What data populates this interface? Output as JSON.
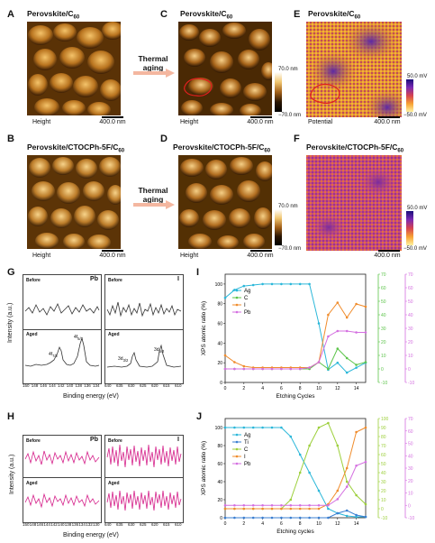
{
  "panels": {
    "A": {
      "letter": "A",
      "title_main": "Perovskite/C",
      "title_sub": "60",
      "caption": "Height",
      "scale": "400.0 nm"
    },
    "B": {
      "letter": "B",
      "title_main": "Perovskite/CTOCPh-5F/C",
      "title_sub": "60",
      "caption": "Height",
      "scale": "400.0 nm"
    },
    "C": {
      "letter": "C",
      "title_main": "Perovskite/C",
      "title_sub": "60",
      "caption": "Height",
      "scale": "400.0 nm",
      "cb_max": "70.0 nm",
      "cb_min": "−70.0 nm"
    },
    "D": {
      "letter": "D",
      "title_main": "Perovskite/CTOCPh-5F/C",
      "title_sub": "60",
      "caption": "Height",
      "scale": "400.0 nm",
      "cb_max": "70.0 nm",
      "cb_min": "−70.0 nm"
    },
    "E": {
      "letter": "E",
      "title_main": "Perovskite/C",
      "title_sub": "60",
      "caption": "Potential",
      "scale": "400.0 nm",
      "cb_max": "50.0 mV",
      "cb_min": "−50.0 mV"
    },
    "F": {
      "letter": "F",
      "title_main": "Perovskite/CTOCPh-5F/C",
      "title_sub": "60",
      "caption": "",
      "scale": "400.0 nm",
      "cb_max": "50.0 mV",
      "cb_min": "−50.0 mV"
    }
  },
  "arrows": [
    {
      "line1": "Thermal",
      "line2": "aging"
    },
    {
      "line1": "Thermal",
      "line2": "aging"
    }
  ],
  "xps_G": {
    "letter": "G",
    "left_title": "Pb",
    "right_title": "I",
    "before": "Before",
    "aged": "Aged",
    "pb_peaks": [
      "4f",
      "7/2",
      "4f",
      "5/2"
    ],
    "i_peaks": [
      "3d",
      "3/2",
      "3d",
      "5/2"
    ],
    "pb_ticks": [
      "150",
      "148",
      "146",
      "144",
      "142",
      "140",
      "138",
      "136",
      "134"
    ],
    "i_ticks": [
      "640",
      "635",
      "630",
      "625",
      "620",
      "615",
      "610"
    ],
    "ylabel": "Intensity (a.u.)",
    "xlabel": "Binding energy (eV)"
  },
  "xps_H": {
    "letter": "H",
    "left_title": "Pb",
    "right_title": "I",
    "before": "Before",
    "aged": "Aged",
    "pb_ticks": [
      "150",
      "148",
      "146",
      "144",
      "142",
      "140",
      "138",
      "136",
      "134",
      "132",
      "130"
    ],
    "i_ticks": [
      "640",
      "635",
      "630",
      "625",
      "620",
      "615",
      "610"
    ],
    "ylabel": "Intensity (a.u.)",
    "xlabel": "Binding energy (eV)"
  },
  "chart_data": [
    {
      "id": "I",
      "type": "line",
      "xlabel": "Etching Cycles",
      "ylabel": "XPS atomic ratio (%)",
      "xlim": [
        0,
        15
      ],
      "ylim": [
        0,
        110
      ],
      "y2lim": [
        -10,
        70
      ],
      "y3lim": [
        -10,
        70
      ],
      "x_ticks": [
        0,
        2,
        4,
        6,
        8,
        10,
        12,
        14
      ],
      "y_ticks": [
        0,
        20,
        40,
        60,
        80,
        100
      ],
      "y2_ticks": [
        -10,
        0,
        10,
        20,
        30,
        40,
        50,
        60,
        70
      ],
      "y3_ticks": [
        -10,
        0,
        10,
        20,
        30,
        40,
        50,
        60,
        70
      ],
      "legend_position": "left",
      "series": [
        {
          "name": "Ag",
          "axis": "left",
          "color": "#2bb7d9",
          "x": [
            0,
            1,
            2,
            3,
            4,
            5,
            6,
            7,
            8,
            9,
            10,
            11,
            12,
            13,
            14,
            15
          ],
          "values": [
            86,
            94,
            98,
            99,
            100,
            100,
            100,
            100,
            100,
            100,
            60,
            13,
            20,
            10,
            15,
            20
          ]
        },
        {
          "name": "C",
          "axis": "right1",
          "color": "#5cc44a",
          "x": [
            0,
            1,
            2,
            3,
            4,
            5,
            6,
            7,
            8,
            9,
            10,
            11,
            12,
            13,
            14,
            15
          ],
          "values": [
            0,
            0,
            0,
            0,
            0,
            0,
            0,
            0,
            0,
            0,
            5,
            0,
            15,
            8,
            3,
            5
          ]
        },
        {
          "name": "I",
          "axis": "right1",
          "color": "#f08c2c",
          "x": [
            0,
            1,
            2,
            3,
            4,
            5,
            6,
            7,
            8,
            9,
            10,
            11,
            12,
            13,
            14,
            15
          ],
          "values": [
            10,
            5,
            2,
            1,
            1,
            1,
            1,
            1,
            1,
            1,
            5,
            40,
            49,
            38,
            48,
            46
          ]
        },
        {
          "name": "Pb",
          "axis": "right2",
          "color": "#d46fe0",
          "x": [
            0,
            1,
            2,
            3,
            4,
            5,
            6,
            7,
            8,
            9,
            10,
            11,
            12,
            13,
            14,
            15
          ],
          "values": [
            0,
            0,
            0,
            0,
            0,
            0,
            0,
            0,
            0,
            1,
            5,
            24,
            28,
            28,
            27,
            27
          ]
        }
      ]
    },
    {
      "id": "J",
      "type": "line",
      "xlabel": "Etching cycles",
      "ylabel": "XPS atomic ratio (%)",
      "xlim": [
        0,
        15
      ],
      "ylim": [
        0,
        110
      ],
      "y2lim": [
        -10,
        100
      ],
      "y3lim": [
        -10,
        70
      ],
      "x_ticks": [
        0,
        2,
        4,
        6,
        8,
        10,
        12,
        14
      ],
      "y_ticks": [
        0,
        20,
        40,
        60,
        80,
        100
      ],
      "y2_ticks": [
        -10,
        0,
        10,
        20,
        30,
        40,
        50,
        60,
        70,
        80,
        90,
        100
      ],
      "y3_ticks": [
        -10,
        0,
        10,
        20,
        30,
        40,
        50,
        60,
        70
      ],
      "legend_position": "left",
      "series": [
        {
          "name": "Ag",
          "axis": "left",
          "color": "#2bb7d9",
          "x": [
            0,
            1,
            2,
            3,
            4,
            5,
            6,
            7,
            8,
            9,
            10,
            11,
            12,
            13,
            14,
            15
          ],
          "values": [
            100,
            100,
            100,
            100,
            100,
            100,
            100,
            90,
            70,
            50,
            30,
            10,
            5,
            2,
            1,
            1
          ]
        },
        {
          "name": "Ti",
          "axis": "left",
          "color": "#3b7fd1",
          "x": [
            0,
            1,
            2,
            3,
            4,
            5,
            6,
            7,
            8,
            9,
            10,
            11,
            12,
            13,
            14,
            15
          ],
          "values": [
            0,
            0,
            0,
            0,
            0,
            0,
            0,
            0,
            0,
            0,
            0,
            0,
            5,
            8,
            3,
            1
          ]
        },
        {
          "name": "C",
          "axis": "right1",
          "color": "#9ccf3a",
          "x": [
            0,
            1,
            2,
            3,
            4,
            5,
            6,
            7,
            8,
            9,
            10,
            11,
            12,
            13,
            14,
            15
          ],
          "values": [
            0,
            0,
            0,
            0,
            0,
            0,
            0,
            10,
            40,
            70,
            90,
            95,
            70,
            30,
            15,
            5
          ]
        },
        {
          "name": "I",
          "axis": "right1",
          "color": "#f08c2c",
          "x": [
            0,
            1,
            2,
            3,
            4,
            5,
            6,
            7,
            8,
            9,
            10,
            11,
            12,
            13,
            14,
            15
          ],
          "values": [
            0,
            0,
            0,
            0,
            0,
            0,
            0,
            0,
            0,
            0,
            0,
            5,
            20,
            45,
            85,
            90
          ]
        },
        {
          "name": "Pb",
          "axis": "right2",
          "color": "#d46fe0",
          "x": [
            0,
            1,
            2,
            3,
            4,
            5,
            6,
            7,
            8,
            9,
            10,
            11,
            12,
            13,
            14,
            15
          ],
          "values": [
            0,
            0,
            0,
            0,
            0,
            0,
            0,
            0,
            0,
            0,
            0,
            0,
            5,
            15,
            32,
            35
          ]
        }
      ]
    }
  ]
}
